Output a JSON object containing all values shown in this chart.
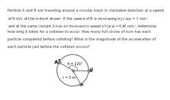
{
  "text_lines": [
    "Particle A and B are traveling around a circular track in clockwise direction at a speed",
    "of 8 m/s at the instant shown. If the speed of B is increasing by $(a_t)_B = 1$ m/s²,",
    "and at the same instant A has an increase in speed of $(a_t)_A = 0.8t$ m/s², determine",
    "how long it takes for a collision to occur. How many full circles of turn has each",
    "particle completed before colliding? What is the magnitude of the acceleration of",
    "each particle just before the collision occurs?"
  ],
  "theta_A_deg": 150,
  "theta_B_deg": 0,
  "theta_C_deg": 300,
  "angle_label": "θ = 120°",
  "radius_label": "r = 5 m",
  "bg_color": "#ffffff",
  "text_color": "#333333",
  "line_color": "#666666",
  "circle_color": "#666666",
  "text_fontsize": 3.8,
  "label_fontsize": 5.0
}
